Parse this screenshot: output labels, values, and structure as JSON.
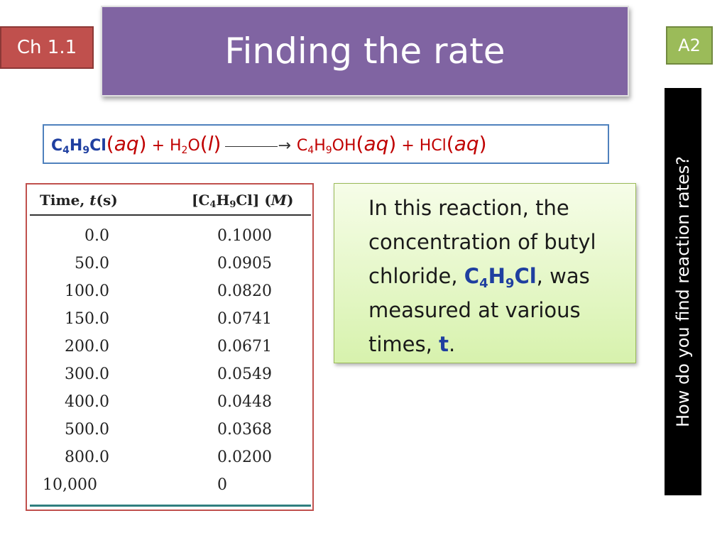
{
  "slide": {
    "title": "Finding the rate",
    "chapter_badge": "Ch 1.1",
    "code_badge": "A2",
    "side_question": "How do you find reaction rates?"
  },
  "equation": {
    "r1_a": "C",
    "r1_n1": "4",
    "r1_b": "H",
    "r1_n2": "9",
    "r1_c": "Cl",
    "r1_phase_open": "(",
    "r1_phase": "aq",
    "r1_phase_close": ")",
    "plus1": " + ",
    "r2_a": "H",
    "r2_n1": "2",
    "r2_b": "O",
    "r2_phase_open": "(",
    "r2_phase": "l",
    "r2_phase_close": ")",
    "arrow": "→",
    "p1_a": "C",
    "p1_n1": "4",
    "p1_b": "H",
    "p1_n2": "9",
    "p1_c": "OH",
    "p1_phase_open": "(",
    "p1_phase": "aq",
    "p1_phase_close": ")",
    "plus2": " + ",
    "p2_a": "HCl",
    "p2_phase_open": "(",
    "p2_phase": "aq",
    "p2_phase_close": ")"
  },
  "table": {
    "col1_a": "Time, ",
    "col1_b": "t",
    "col1_c": "(s)",
    "col2_a": "[C",
    "col2_n1": "4",
    "col2_b": "H",
    "col2_n2": "9",
    "col2_c": "Cl] (",
    "col2_d": "M",
    "col2_e": ")",
    "rows": [
      {
        "time": "0.0",
        "conc": "0.1000"
      },
      {
        "time": "50.0",
        "conc": "0.0905"
      },
      {
        "time": "100.0",
        "conc": "0.0820"
      },
      {
        "time": "150.0",
        "conc": "0.0741"
      },
      {
        "time": "200.0",
        "conc": "0.0671"
      },
      {
        "time": "300.0",
        "conc": "0.0549"
      },
      {
        "time": "400.0",
        "conc": "0.0448"
      },
      {
        "time": "500.0",
        "conc": "0.0368"
      },
      {
        "time": "800.0",
        "conc": "0.0200"
      },
      {
        "time": "10,000",
        "conc": "0"
      }
    ]
  },
  "note": {
    "part1": "In this reaction, the concentration of butyl chloride, ",
    "f_a": "C",
    "f_n1": "4",
    "f_b": "H",
    "f_n2": "9",
    "f_c": "Cl",
    "part2": ", was measured at various times, ",
    "t": "t",
    "part3": "."
  },
  "colors": {
    "title_bg": "#8064a2",
    "chapter_badge_bg": "#c0504d",
    "code_badge_bg": "#9bbb59",
    "equation_text": "#c00000",
    "highlight_blue": "#1f3fa0"
  }
}
